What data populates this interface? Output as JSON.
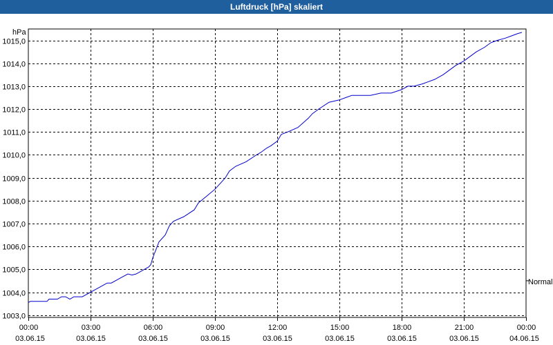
{
  "window": {
    "title": "Luftdruck [hPa] skaliert"
  },
  "chart_data": {
    "type": "line",
    "title": "Luftdruck [hPa] skaliert",
    "ylabel": "hPa",
    "ylim": [
      1002.9,
      1015.5
    ],
    "y_ticks": [
      "1003,0",
      "1004,0",
      "1005,0",
      "1006,0",
      "1007,0",
      "1008,0",
      "1009,0",
      "1010,0",
      "1011,0",
      "1012,0",
      "1013,0",
      "1014,0",
      "1015,0"
    ],
    "y_tick_values": [
      1003,
      1004,
      1005,
      1006,
      1007,
      1008,
      1009,
      1010,
      1011,
      1012,
      1013,
      1014,
      1015
    ],
    "x_ticks": [
      {
        "time": "00:00",
        "date": "03.06.15"
      },
      {
        "time": "03:00",
        "date": "03.06.15"
      },
      {
        "time": "06:00",
        "date": "03.06.15"
      },
      {
        "time": "09:00",
        "date": "03.06.15"
      },
      {
        "time": "12:00",
        "date": "03.06.15"
      },
      {
        "time": "15:00",
        "date": "03.06.15"
      },
      {
        "time": "18:00",
        "date": "03.06.15"
      },
      {
        "time": "21:00",
        "date": "03.06.15"
      },
      {
        "time": "00:00",
        "date": "04.06.15"
      }
    ],
    "xlim_hours": [
      0,
      24
    ],
    "marker_label": "Normal",
    "marker_value": 1004.5,
    "grid": true,
    "series": [
      {
        "color": "#0000cc",
        "x_hours": [
          0,
          0.1,
          0.9,
          1.0,
          1.4,
          1.6,
          1.8,
          2.0,
          2.2,
          2.6,
          3.0,
          3.2,
          3.6,
          3.8,
          4.0,
          4.4,
          4.8,
          5.0,
          5.2,
          5.6,
          5.8,
          5.9,
          6.0,
          6.3,
          6.6,
          6.8,
          7.0,
          7.5,
          8.0,
          8.2,
          8.6,
          9.0,
          9.3,
          9.5,
          9.7,
          10.0,
          10.5,
          11.0,
          11.2,
          11.5,
          11.7,
          12.0,
          12.2,
          12.5,
          13.0,
          13.5,
          13.7,
          14.0,
          14.5,
          15.0,
          15.3,
          15.6,
          16.0,
          16.5,
          17.0,
          17.5,
          18.0,
          18.3,
          18.6,
          19.0,
          19.3,
          19.6,
          20.0,
          20.3,
          20.6,
          21.0,
          21.3,
          21.6,
          22.0,
          22.3,
          22.6,
          23.0,
          23.3,
          23.6,
          23.8
        ],
        "values": [
          1003.55,
          1003.6,
          1003.6,
          1003.7,
          1003.7,
          1003.8,
          1003.8,
          1003.7,
          1003.8,
          1003.8,
          1004.0,
          1004.1,
          1004.3,
          1004.4,
          1004.4,
          1004.6,
          1004.8,
          1004.75,
          1004.8,
          1005.0,
          1005.1,
          1005.2,
          1005.5,
          1006.2,
          1006.5,
          1006.9,
          1007.1,
          1007.3,
          1007.6,
          1007.9,
          1008.2,
          1008.5,
          1008.8,
          1009.0,
          1009.3,
          1009.5,
          1009.7,
          1010.0,
          1010.1,
          1010.3,
          1010.4,
          1010.6,
          1010.9,
          1011.0,
          1011.2,
          1011.6,
          1011.8,
          1012.0,
          1012.3,
          1012.4,
          1012.5,
          1012.6,
          1012.6,
          1012.6,
          1012.7,
          1012.7,
          1012.85,
          1013.0,
          1013.0,
          1013.1,
          1013.2,
          1013.3,
          1013.5,
          1013.7,
          1013.9,
          1014.1,
          1014.3,
          1014.5,
          1014.7,
          1014.9,
          1015.0,
          1015.1,
          1015.2,
          1015.3,
          1015.35
        ]
      }
    ]
  }
}
